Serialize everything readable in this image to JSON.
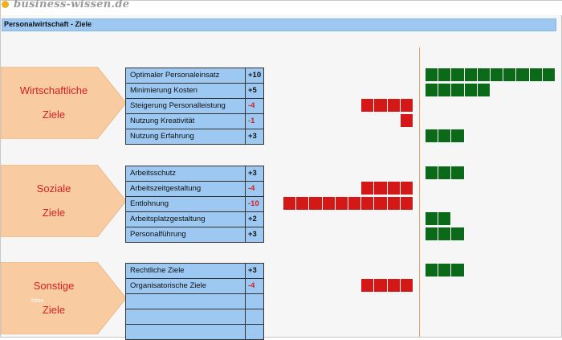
{
  "logo": {
    "text": "business-wissen.de"
  },
  "title": "Personalwirtschaft - Ziele",
  "sections": [
    {
      "label_line1": "Wirtschaftliche",
      "label_line2": "Ziele",
      "items": [
        {
          "label": "Optimaler Personaleinsatz",
          "value": "+10",
          "num": 10
        },
        {
          "label": "Minimierung Kosten",
          "value": "+5",
          "num": 5
        },
        {
          "label": "Steigerung Personalleistung",
          "value": "-4",
          "num": -4
        },
        {
          "label": "Nutzung Kreativität",
          "value": "-1",
          "num": -1
        },
        {
          "label": "Nutzung Erfahrung",
          "value": "+3",
          "num": 3
        }
      ]
    },
    {
      "label_line1": "Soziale",
      "label_line2": "Ziele",
      "items": [
        {
          "label": "Arbeitsschutz",
          "value": "+3",
          "num": 3
        },
        {
          "label": "Arbeitszeitgestaltung",
          "value": "-4",
          "num": -4
        },
        {
          "label": "Entlohnung",
          "value": "-10",
          "num": -10
        },
        {
          "label": "Arbeitsplatzgestaltung",
          "value": "+2",
          "num": 2
        },
        {
          "label": "Personalführung",
          "value": "+3",
          "num": 3
        }
      ]
    },
    {
      "label_line1": "Sonstige",
      "label_line2": "Ziele",
      "items": [
        {
          "label": "Rechtliche Ziele",
          "value": "+3",
          "num": 3
        },
        {
          "label": "Organisatorische Ziele",
          "value": "-4",
          "num": -4
        },
        {
          "label": "",
          "value": "",
          "num": 0
        },
        {
          "label": "",
          "value": "",
          "num": 0
        },
        {
          "label": "",
          "value": "",
          "num": 0
        }
      ]
    }
  ],
  "stamp": "fotos",
  "chart_data": {
    "type": "bar",
    "orientation": "horizontal",
    "categories": [
      "Optimaler Personaleinsatz",
      "Minimierung Kosten",
      "Steigerung Personalleistung",
      "Nutzung Kreativität",
      "Nutzung Erfahrung",
      "Arbeitsschutz",
      "Arbeitszeitgestaltung",
      "Entlohnung",
      "Arbeitsplatzgestaltung",
      "Personalführung",
      "Rechtliche Ziele",
      "Organisatorische Ziele"
    ],
    "values": [
      10,
      5,
      -4,
      -1,
      3,
      3,
      -4,
      -10,
      2,
      3,
      3,
      -4
    ],
    "xlim": [
      -10,
      10
    ],
    "colors": {
      "positive": "#0a6a18",
      "negative": "#d41818"
    },
    "grid": false
  }
}
